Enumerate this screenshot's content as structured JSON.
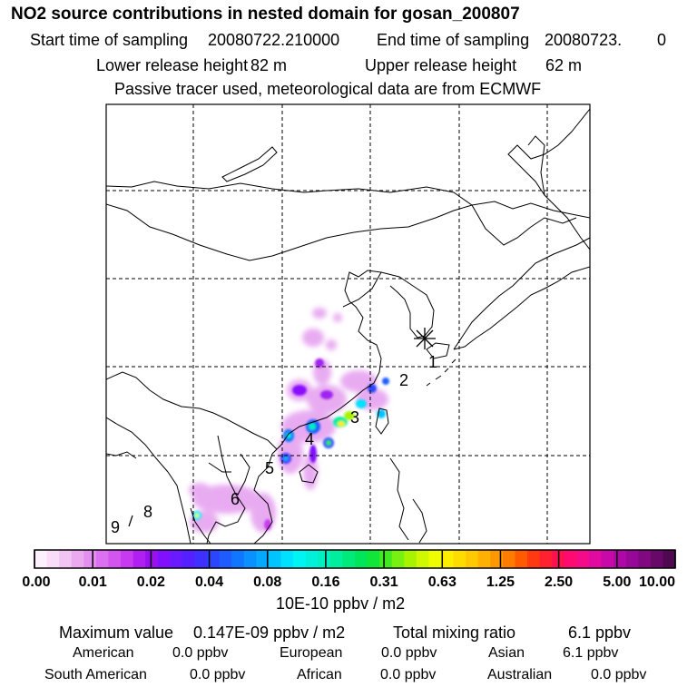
{
  "header": {
    "title": "NO2 source contributions in nested domain for gosan_200807",
    "start_label": "Start time of sampling",
    "start_value": "20080722.210000",
    "end_label": "End time of sampling",
    "end_value": "20080723.",
    "end_suffix": "0",
    "lower_label": "Lower release height",
    "lower_value": "82 m",
    "upper_label": "Upper release height",
    "upper_value": "62 m",
    "note": "Passive tracer used, meteorological data are from ECMWF"
  },
  "map": {
    "receptor_marker": "asterisk-icon",
    "markers": [
      {
        "label": "1"
      },
      {
        "label": "2"
      },
      {
        "label": "3"
      },
      {
        "label": "4"
      },
      {
        "label": "5"
      },
      {
        "label": "6"
      },
      {
        "label": "8"
      },
      {
        "label": "9"
      }
    ]
  },
  "colorbar": {
    "ticks": [
      "0.00",
      "0.01",
      "0.02",
      "0.04",
      "0.08",
      "0.16",
      "0.31",
      "0.63",
      "1.25",
      "2.50",
      "5.00",
      "10.00"
    ],
    "unit": "10E-10 ppbv / m2",
    "colors": [
      "#fdf0fd",
      "#f8dcf8",
      "#f2c4f4",
      "#eaaaf0",
      "#e38ff0",
      "#dc70f0",
      "#d255f0",
      "#c83af0",
      "#b020f0",
      "#9a10f0",
      "#8010ff",
      "#6a1aff",
      "#5520ff",
      "#3f30ff",
      "#2c45ff",
      "#1e5cff",
      "#1075ff",
      "#0a90ff",
      "#05aaff",
      "#00c4ff",
      "#00e0ff",
      "#00f4f4",
      "#00f0dc",
      "#00f0c0",
      "#00ee9e",
      "#00ea7c",
      "#00e65a",
      "#10e63a",
      "#40ea20",
      "#78f010",
      "#a8f400",
      "#d0f800",
      "#f0fc00",
      "#ffee00",
      "#ffdc00",
      "#ffc800",
      "#ffb000",
      "#ff9800",
      "#ff7c00",
      "#ff5a00",
      "#ff3a10",
      "#ff2030",
      "#ff1050",
      "#ff0a70",
      "#f50a8a",
      "#e00aa0",
      "#c808a8",
      "#b008a8",
      "#980898",
      "#800880",
      "#680868",
      "#500850"
    ]
  },
  "footer": {
    "max_label": "Maximum value",
    "max_value": "0.147E-09 ppbv / m2",
    "total_label": "Total mixing ratio",
    "total_value": "6.1 ppbv",
    "regions": [
      {
        "name": "American",
        "value": "0.0 ppbv"
      },
      {
        "name": "European",
        "value": "0.0 ppbv"
      },
      {
        "name": "Asian",
        "value": "6.1 ppbv"
      },
      {
        "name": "South American",
        "value": "0.0 ppbv"
      },
      {
        "name": "African",
        "value": "0.0 ppbv"
      },
      {
        "name": "Australian",
        "value": "0.0 ppbv"
      }
    ]
  }
}
